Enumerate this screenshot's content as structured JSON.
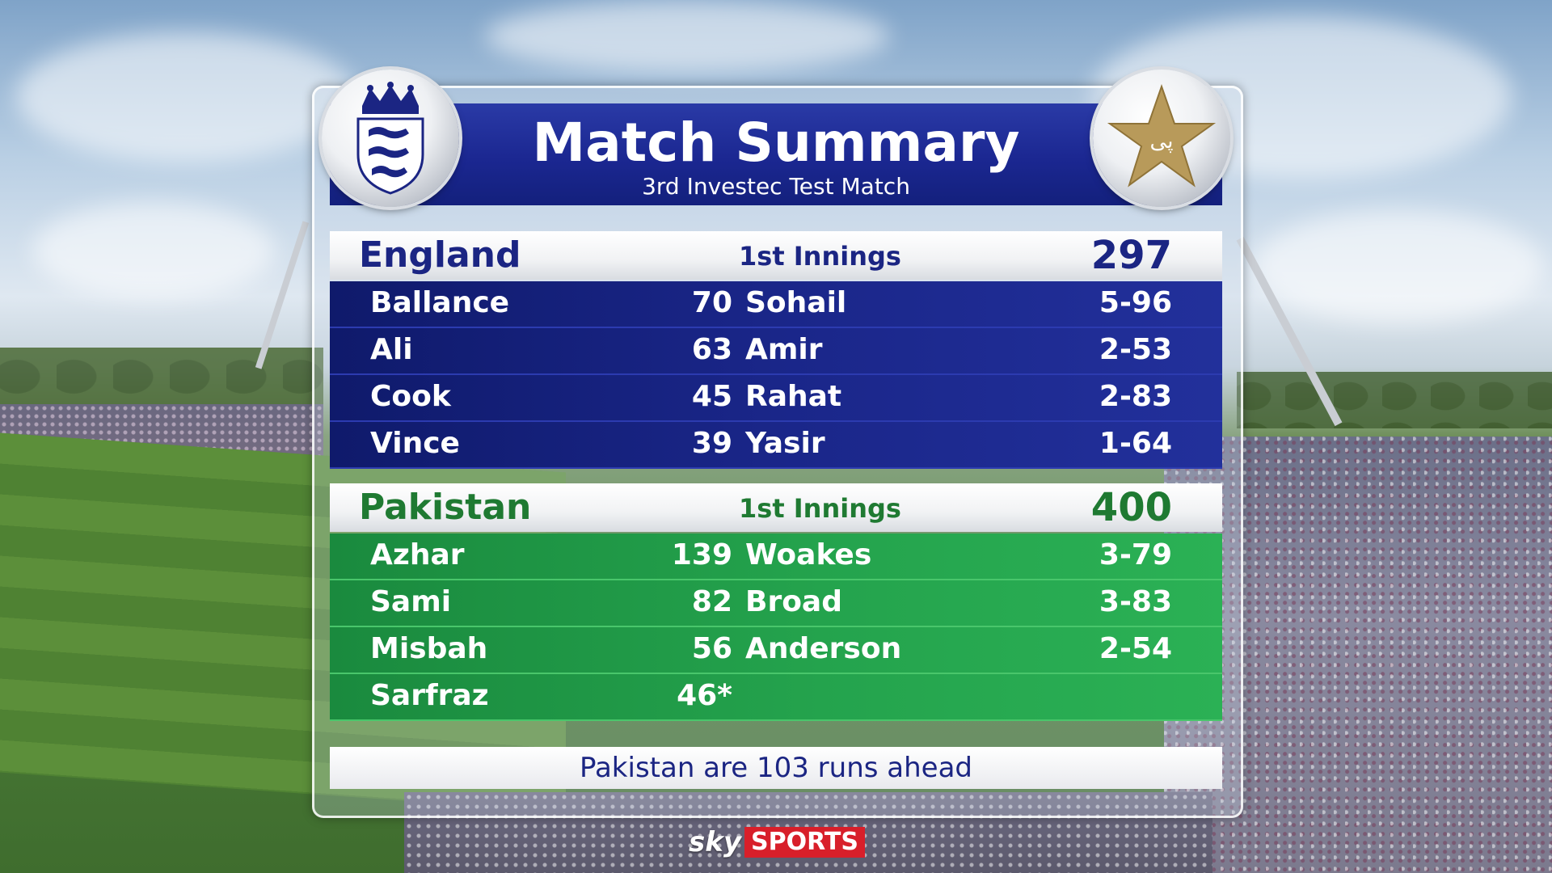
{
  "header": {
    "title": "Match Summary",
    "subtitle": "3rd Investec Test Match"
  },
  "badges": {
    "left": "england-crest-icon",
    "right": "pakistan-star-icon"
  },
  "england": {
    "name": "England",
    "innings": "1st Innings",
    "total": "297",
    "color": "#1b2583",
    "rows": [
      {
        "batter": "Ballance",
        "runs": "70",
        "bowler": "Sohail",
        "figures": "5-96"
      },
      {
        "batter": "Ali",
        "runs": "63",
        "bowler": "Amir",
        "figures": "2-53"
      },
      {
        "batter": "Cook",
        "runs": "45",
        "bowler": "Rahat",
        "figures": "2-83"
      },
      {
        "batter": "Vince",
        "runs": "39",
        "bowler": "Yasir",
        "figures": "1-64"
      }
    ]
  },
  "pakistan": {
    "name": "Pakistan",
    "innings": "1st Innings",
    "total": "400",
    "color": "#1f7a32",
    "rows": [
      {
        "batter": "Azhar",
        "runs": "139",
        "bowler": "Woakes",
        "figures": "3-79"
      },
      {
        "batter": "Sami",
        "runs": "82",
        "bowler": "Broad",
        "figures": "3-83"
      },
      {
        "batter": "Misbah",
        "runs": "56",
        "bowler": "Anderson",
        "figures": "2-54"
      },
      {
        "batter": "Sarfraz",
        "runs": "46*",
        "bowler": "",
        "figures": ""
      }
    ]
  },
  "footer": {
    "text": "Pakistan are 103 runs ahead"
  },
  "broadcaster": {
    "sky": "sky",
    "sports": "SPORTS"
  }
}
